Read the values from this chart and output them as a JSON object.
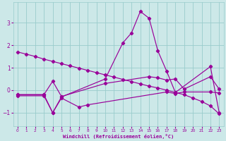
{
  "color": "#990099",
  "bg_color": "#cce8e8",
  "grid_color": "#99cccc",
  "xlabel": "Windchill (Refroidissement éolien,°C)",
  "ylim": [
    -1.6,
    3.9
  ],
  "xlim": [
    -0.5,
    23.5
  ],
  "yticks": [
    -1,
    0,
    1,
    2,
    3
  ],
  "xticks": [
    0,
    1,
    2,
    3,
    4,
    5,
    6,
    7,
    8,
    9,
    10,
    11,
    12,
    13,
    14,
    15,
    16,
    17,
    18,
    19,
    20,
    21,
    22,
    23
  ],
  "line_main_x": [
    0,
    3,
    4,
    5,
    10,
    12,
    13,
    14,
    15,
    16,
    17,
    18,
    22,
    23
  ],
  "line_main_y": [
    -0.2,
    -0.2,
    -1.0,
    -0.3,
    0.5,
    2.1,
    2.55,
    3.5,
    3.2,
    1.75,
    0.85,
    -0.1,
    1.05,
    -1.0
  ],
  "line_diag_x": [
    0,
    1,
    2,
    3,
    4,
    5,
    6,
    7,
    8,
    9,
    10,
    11,
    12,
    13,
    14,
    15,
    16,
    17,
    18,
    19,
    20,
    21,
    22,
    23
  ],
  "line_diag_y": [
    1.7,
    1.6,
    1.5,
    1.38,
    1.28,
    1.18,
    1.08,
    0.98,
    0.88,
    0.78,
    0.68,
    0.58,
    0.48,
    0.38,
    0.28,
    0.18,
    0.1,
    0.0,
    -0.1,
    -0.2,
    -0.35,
    -0.5,
    -0.7,
    -1.05
  ],
  "line_flat_x": [
    0,
    3,
    4,
    5,
    10,
    15,
    16,
    17,
    18,
    19,
    22,
    23
  ],
  "line_flat_y": [
    -0.2,
    -0.2,
    0.4,
    -0.28,
    0.3,
    0.6,
    0.55,
    0.45,
    0.5,
    0.05,
    0.6,
    0.05
  ],
  "line_low_x": [
    0,
    3,
    4,
    5,
    7,
    8,
    17,
    18,
    19,
    22,
    23
  ],
  "line_low_y": [
    -0.25,
    -0.25,
    -1.0,
    -0.35,
    -0.75,
    -0.65,
    -0.08,
    -0.15,
    -0.08,
    -0.08,
    -0.12
  ]
}
